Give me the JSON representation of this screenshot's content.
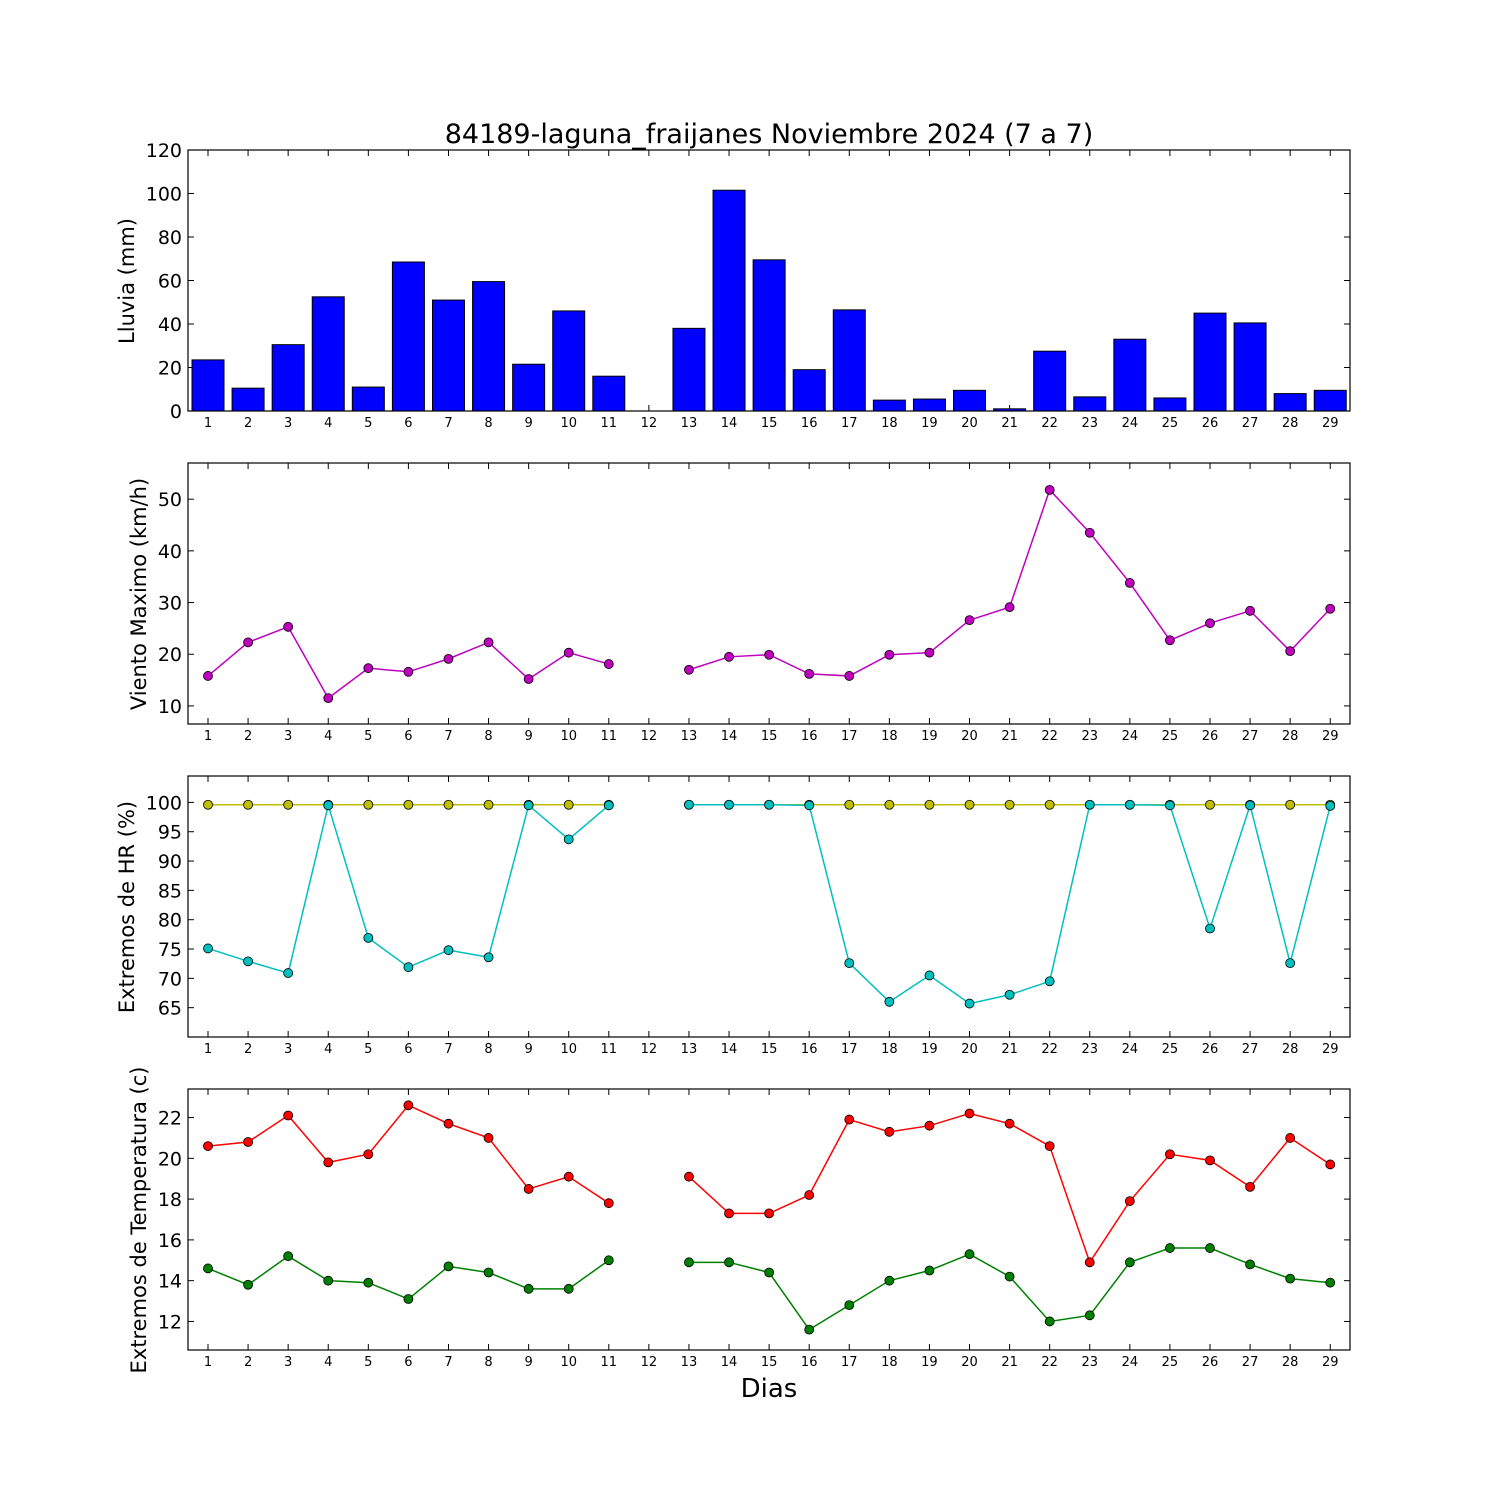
{
  "chart_data": [
    {
      "type": "bar",
      "title": "84189-laguna_fraijanes Noviembre 2024  (7 a 7)",
      "ylabel": "Lluvia (mm)",
      "xlabel": "",
      "ylim": [
        0,
        120
      ],
      "yticks": [
        0,
        20,
        40,
        60,
        80,
        100,
        120
      ],
      "categories": [
        1,
        2,
        3,
        4,
        5,
        6,
        7,
        8,
        9,
        10,
        11,
        12,
        13,
        14,
        15,
        16,
        17,
        18,
        19,
        20,
        21,
        22,
        23,
        24,
        25,
        26,
        27,
        28,
        29
      ],
      "series": [
        {
          "color": "#0000ff",
          "values": [
            23.5,
            10.5,
            30.5,
            52.5,
            11,
            68.5,
            51,
            59.5,
            21.5,
            46,
            16,
            0,
            38,
            101.5,
            69.5,
            19,
            46.5,
            5,
            5.5,
            9.5,
            1,
            27.5,
            6.5,
            33,
            6,
            45,
            40.5,
            8,
            9.5
          ]
        }
      ],
      "grid": false
    },
    {
      "type": "line",
      "title": "",
      "ylabel": "Viento Maximo (km/h)",
      "xlabel": "",
      "ylim": [
        6.5,
        57
      ],
      "yticks": [
        10,
        20,
        30,
        40,
        50
      ],
      "categories": [
        1,
        2,
        3,
        4,
        5,
        6,
        7,
        8,
        9,
        10,
        11,
        12,
        13,
        14,
        15,
        16,
        17,
        18,
        19,
        20,
        21,
        22,
        23,
        24,
        25,
        26,
        27,
        28,
        29
      ],
      "series": [
        {
          "color": "#bf00bf",
          "values": [
            15.8,
            22.3,
            25.3,
            11.5,
            17.3,
            16.6,
            19.1,
            22.3,
            15.2,
            20.3,
            18.1,
            null,
            17,
            19.5,
            19.9,
            16.2,
            15.8,
            19.9,
            20.3,
            26.6,
            29.1,
            51.8,
            43.5,
            33.8,
            22.7,
            26,
            28.4,
            20.6,
            28.8
          ]
        }
      ],
      "grid": false
    },
    {
      "type": "line",
      "title": "",
      "ylabel": "Extremos de HR (%)",
      "xlabel": "",
      "ylim": [
        60,
        104.5
      ],
      "yticks": [
        65,
        70,
        75,
        80,
        85,
        90,
        95,
        100
      ],
      "categories": [
        1,
        2,
        3,
        4,
        5,
        6,
        7,
        8,
        9,
        10,
        11,
        12,
        13,
        14,
        15,
        16,
        17,
        18,
        19,
        20,
        21,
        22,
        23,
        24,
        25,
        26,
        27,
        28,
        29
      ],
      "series": [
        {
          "color": "#bfbf00",
          "values": [
            99.6,
            99.6,
            99.6,
            99.6,
            99.6,
            99.6,
            99.6,
            99.6,
            99.6,
            99.6,
            99.6,
            null,
            99.6,
            99.6,
            99.6,
            99.6,
            99.6,
            99.6,
            99.6,
            99.6,
            99.6,
            99.6,
            99.6,
            99.6,
            99.6,
            99.6,
            99.6,
            99.6,
            99.6
          ]
        },
        {
          "color": "#00bfbf",
          "values": [
            75.1,
            72.9,
            70.9,
            99.5,
            76.9,
            71.9,
            74.8,
            73.6,
            99.5,
            93.7,
            99.5,
            null,
            99.6,
            99.6,
            99.6,
            99.5,
            72.6,
            66,
            70.5,
            65.7,
            67.2,
            69.5,
            99.6,
            99.6,
            99.5,
            78.5,
            99.5,
            72.6,
            99.4
          ]
        }
      ],
      "grid": false
    },
    {
      "type": "line",
      "title": "",
      "ylabel": "Extremos de Temperatura (c)",
      "xlabel": "Dias",
      "ylim": [
        10.6,
        23.4
      ],
      "yticks": [
        12,
        14,
        16,
        18,
        20,
        22
      ],
      "categories": [
        1,
        2,
        3,
        4,
        5,
        6,
        7,
        8,
        9,
        10,
        11,
        12,
        13,
        14,
        15,
        16,
        17,
        18,
        19,
        20,
        21,
        22,
        23,
        24,
        25,
        26,
        27,
        28,
        29
      ],
      "series": [
        {
          "color": "#ff0000",
          "values": [
            20.6,
            20.8,
            22.1,
            19.8,
            20.2,
            22.6,
            21.7,
            21,
            18.5,
            19.1,
            17.8,
            null,
            19.1,
            17.3,
            17.3,
            18.2,
            21.9,
            21.3,
            21.6,
            22.2,
            21.7,
            20.6,
            14.9,
            17.9,
            20.2,
            19.9,
            18.6,
            21,
            19.7
          ]
        },
        {
          "color": "#008000",
          "values": [
            14.6,
            13.8,
            15.2,
            14,
            13.9,
            13.1,
            14.7,
            14.4,
            13.6,
            13.6,
            15,
            null,
            14.9,
            14.9,
            14.4,
            11.6,
            12.8,
            14,
            14.5,
            15.3,
            14.2,
            12,
            12.3,
            14.9,
            15.6,
            15.6,
            14.8,
            14.1,
            13.9
          ]
        }
      ],
      "grid": false
    }
  ]
}
